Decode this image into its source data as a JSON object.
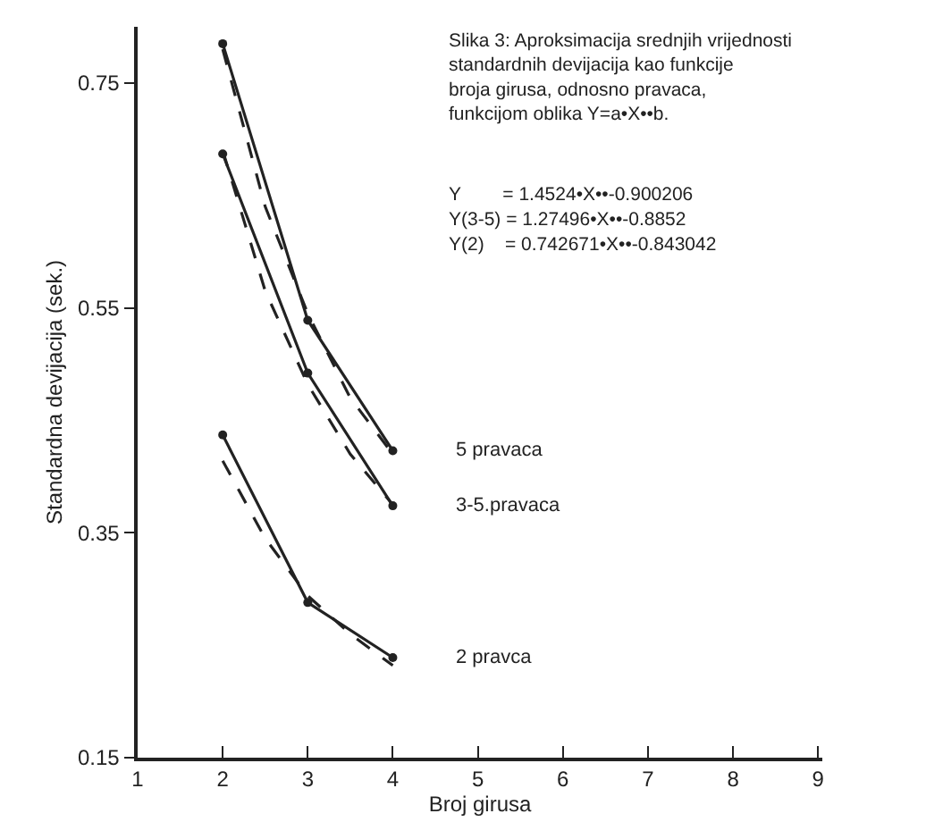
{
  "chart_data": {
    "type": "line",
    "title": "Slika 3: Aproksimacija srednjih vrijednosti\nstandardnih devijacija kao funkcije\nbroja girusa, odnosno pravaca,\nfunkcijom oblika Y=a•X••b.",
    "xlabel": "Broj girusa",
    "ylabel": "Standardna devijacija (sek.)",
    "series": [
      {
        "name": "5 pravaca",
        "color": "#222222",
        "x": [
          2,
          3,
          4
        ],
        "values": [
          0.785,
          0.539,
          0.423
        ],
        "marker": "circle",
        "line_style": "solid"
      },
      {
        "name": "3-5.pravaca",
        "color": "#222222",
        "x": [
          2,
          3,
          4
        ],
        "values": [
          0.687,
          0.492,
          0.374
        ],
        "marker": "circle",
        "line_style": "solid"
      },
      {
        "name": "2 pravca",
        "color": "#222222",
        "x": [
          2,
          3,
          4
        ],
        "values": [
          0.437,
          0.288,
          0.239
        ],
        "marker": "circle",
        "line_style": "solid"
      },
      {
        "color": "#222222",
        "x": [
          2,
          2.5,
          3,
          3.5,
          4
        ],
        "values": [
          0.78,
          0.64,
          0.545,
          0.47,
          0.42
        ],
        "marker": "none",
        "line_style": "dashed"
      },
      {
        "color": "#222222",
        "x": [
          2,
          2.5,
          3,
          3.5,
          4
        ],
        "values": [
          0.69,
          0.565,
          0.482,
          0.42,
          0.375
        ],
        "marker": "none",
        "line_style": "dashed"
      },
      {
        "color": "#222222",
        "x": [
          2,
          2.5,
          3,
          3.5,
          4
        ],
        "values": [
          0.414,
          0.345,
          0.294,
          0.26,
          0.232
        ],
        "marker": "none",
        "line_style": "dashed"
      }
    ],
    "annotations": [
      "Y        = 1.4524•X••-0.900206",
      "Y(3-5) = 1.27496•X••-0.8852",
      "Y(2)    = 0.742671•X••-0.843042"
    ],
    "xlim": [
      1,
      9.05
    ],
    "xticks": [
      1,
      2,
      3,
      4,
      5,
      6,
      7,
      8,
      9
    ],
    "ylim": [
      0.15,
      0.8
    ],
    "yticks": [
      0.15,
      0.35,
      0.55,
      0.75
    ],
    "grid": false,
    "legend": false
  }
}
